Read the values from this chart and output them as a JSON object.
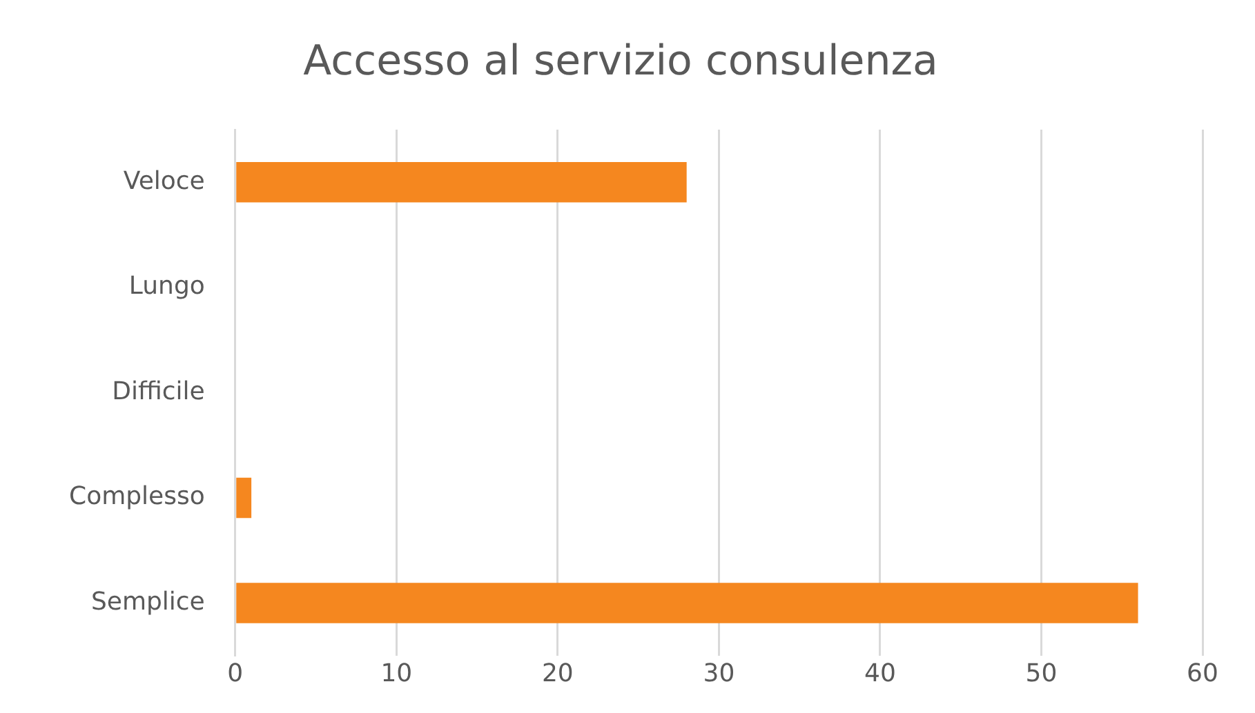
{
  "chart_data": {
    "type": "bar",
    "orientation": "horizontal",
    "title": "Accesso al servizio consulenza",
    "categories": [
      "Veloce",
      "Lungo",
      "Difficile",
      "Complesso",
      "Semplice"
    ],
    "values": [
      28,
      0,
      0,
      1,
      56
    ],
    "color": "#f5871f",
    "xlim": [
      0,
      60
    ],
    "xticks": [
      0,
      10,
      20,
      30,
      40,
      50,
      60
    ],
    "grid": "x",
    "legend": false
  }
}
